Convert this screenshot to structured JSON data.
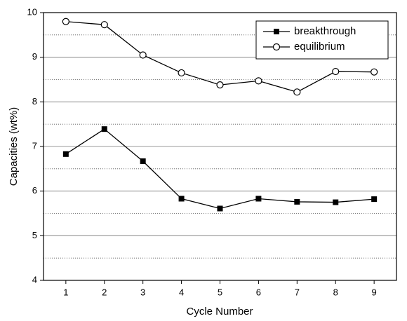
{
  "chart_data": {
    "type": "line",
    "x_label": "Cycle Number",
    "y_label": "Capacities (wt%)",
    "x": [
      1,
      2,
      3,
      4,
      5,
      6,
      7,
      8,
      9
    ],
    "series": [
      {
        "name": "breakthrough",
        "color": "#000000",
        "marker": "filled-square",
        "values": [
          6.83,
          7.39,
          6.67,
          5.83,
          5.61,
          5.83,
          5.76,
          5.75,
          5.82
        ]
      },
      {
        "name": "equilibrium",
        "color": "#000000",
        "marker": "open-circle",
        "values": [
          9.8,
          9.73,
          9.05,
          8.65,
          8.38,
          8.47,
          8.22,
          8.68,
          8.67
        ]
      }
    ],
    "xlim": [
      0.42,
      9.58
    ],
    "xticks": [
      1,
      2,
      3,
      4,
      5,
      6,
      7,
      8,
      9
    ],
    "ylim": [
      4,
      10
    ],
    "yticks": [
      4,
      5,
      6,
      7,
      8,
      9,
      10
    ],
    "yminor_ticks": [
      4.5,
      5.5,
      6.5,
      7.5,
      8.5,
      9.5
    ],
    "grid": true,
    "legend": "upper right"
  }
}
